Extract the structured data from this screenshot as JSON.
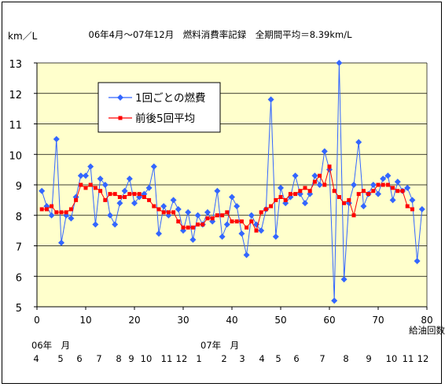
{
  "chart_data": {
    "type": "line",
    "title": "06年4月～07年12月　燃料消費率記録　全期間平均＝8.39km/L",
    "ylabel": "km／L",
    "xlabel": "給油回数",
    "xlim": [
      0,
      80
    ],
    "ylim": [
      5,
      13
    ],
    "x_ticks": [
      "0",
      "10",
      "20",
      "30",
      "40",
      "50",
      "60",
      "70",
      "80"
    ],
    "y_ticks": [
      "5",
      "6",
      "7",
      "8",
      "9",
      "10",
      "11",
      "12",
      "13"
    ],
    "plot_background": "#FFFFCC",
    "grid": "horizontal",
    "legend_placement": "upper-left inside plot",
    "series": [
      {
        "name": "1回ごとの燃費",
        "color": "#3366FF",
        "marker": "diamond",
        "x": [
          1,
          2,
          3,
          4,
          5,
          6,
          7,
          8,
          9,
          10,
          11,
          12,
          13,
          14,
          15,
          16,
          17,
          18,
          19,
          20,
          21,
          22,
          23,
          24,
          25,
          26,
          27,
          28,
          29,
          30,
          31,
          32,
          33,
          34,
          35,
          36,
          37,
          38,
          39,
          40,
          41,
          42,
          43,
          44,
          45,
          46,
          47,
          48,
          49,
          50,
          51,
          52,
          53,
          54,
          55,
          56,
          57,
          58,
          59,
          60,
          61,
          62,
          63,
          64,
          65,
          66,
          67,
          68,
          69,
          70,
          71,
          72,
          73,
          74,
          75,
          76,
          77,
          78,
          79
        ],
        "values": [
          8.8,
          8.3,
          8.0,
          10.5,
          7.1,
          8.0,
          7.9,
          8.6,
          9.3,
          9.3,
          9.6,
          7.7,
          9.2,
          9.0,
          8.0,
          7.7,
          8.4,
          8.8,
          9.2,
          8.4,
          8.6,
          8.7,
          8.9,
          9.6,
          7.4,
          8.3,
          8.0,
          8.5,
          8.2,
          7.5,
          8.1,
          7.2,
          8.0,
          7.7,
          8.1,
          7.8,
          8.8,
          7.3,
          7.7,
          8.6,
          8.3,
          7.4,
          6.7,
          8.0,
          7.7,
          7.5,
          8.2,
          11.8,
          7.3,
          8.9,
          8.4,
          8.6,
          9.3,
          8.7,
          8.4,
          8.7,
          9.3,
          9.0,
          10.1,
          9.5,
          5.2,
          13.0,
          5.9,
          8.4,
          9.0,
          10.4,
          8.3,
          8.7,
          9.0,
          8.7,
          9.2,
          9.3,
          8.5,
          9.1,
          8.8,
          8.9,
          8.5,
          6.5,
          8.2
        ]
      },
      {
        "name": "前後5回平均",
        "color": "#FF0000",
        "marker": "square",
        "x": [
          1,
          2,
          3,
          4,
          5,
          6,
          7,
          8,
          9,
          10,
          11,
          12,
          13,
          14,
          15,
          16,
          17,
          18,
          19,
          20,
          21,
          22,
          23,
          24,
          25,
          26,
          27,
          28,
          29,
          30,
          31,
          32,
          33,
          34,
          35,
          36,
          37,
          38,
          39,
          40,
          41,
          42,
          43,
          44,
          45,
          46,
          47,
          48,
          49,
          50,
          51,
          52,
          53,
          54,
          55,
          56,
          57,
          58,
          59,
          60,
          61,
          62,
          63,
          64,
          65,
          66,
          67,
          68,
          69,
          70,
          71,
          72,
          73,
          74,
          75,
          76,
          77
        ],
        "values": [
          8.2,
          8.2,
          8.3,
          8.1,
          8.1,
          8.1,
          8.2,
          8.5,
          9.0,
          8.9,
          9.0,
          8.9,
          8.8,
          8.5,
          8.7,
          8.7,
          8.6,
          8.6,
          8.7,
          8.7,
          8.7,
          8.6,
          8.5,
          8.3,
          8.2,
          8.1,
          8.1,
          8.1,
          7.8,
          7.6,
          7.6,
          7.6,
          7.7,
          7.7,
          7.9,
          7.9,
          8.0,
          8.0,
          8.1,
          7.8,
          7.8,
          7.8,
          7.6,
          7.8,
          7.5,
          8.1,
          8.2,
          8.3,
          8.5,
          8.6,
          8.5,
          8.7,
          8.7,
          8.8,
          8.9,
          8.8,
          9.1,
          9.3,
          9.0,
          9.6,
          8.8,
          8.6,
          8.4,
          8.5,
          8.0,
          8.7,
          8.8,
          8.7,
          8.8,
          9.0,
          9.0,
          9.0,
          8.9,
          8.8,
          8.8,
          8.3,
          8.2
        ]
      }
    ]
  },
  "month_axis": {
    "label_2006": "06年　月",
    "label_2007": "07年　月",
    "months": [
      "4",
      "5",
      "6",
      "7",
      "8",
      "9",
      "10",
      "11",
      "12",
      "1",
      "2",
      "3",
      "4",
      "5",
      "6",
      "7",
      "8",
      "9",
      "10",
      "11",
      "12"
    ]
  }
}
